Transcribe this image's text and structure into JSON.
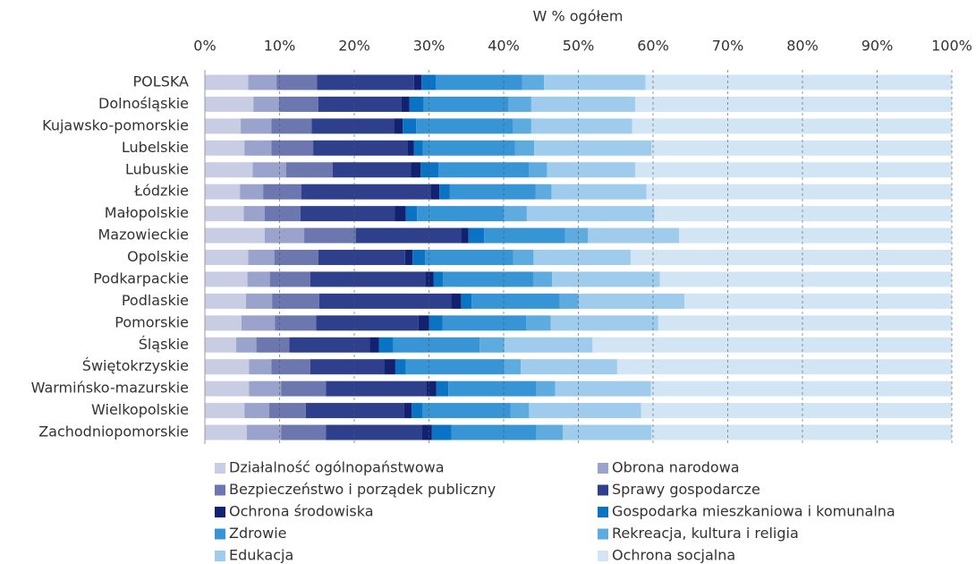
{
  "chart_data": {
    "type": "stacked-bar-horizontal",
    "title": "W % ogółem",
    "categories": [
      "POLSKA",
      "Dolnośląskie",
      "Kujawsko-pomorskie",
      "Lubelskie",
      "Lubuskie",
      "Łódzkie",
      "Małopolskie",
      "Mazowieckie",
      "Opolskie",
      "Podkarpackie",
      "Podlaskie",
      "Pomorskie",
      "Śląskie",
      "Świętokrzyskie",
      "Warmińsko-mazurskie",
      "Wielkopolskie",
      "Zachodniopomorskie"
    ],
    "series": [
      {
        "name": "Działalność ogólnopaństwowa",
        "color": "#c9cde4",
        "values": [
          5.8,
          6.5,
          4.8,
          5.3,
          6.4,
          4.7,
          5.2,
          8.0,
          5.8,
          5.7,
          5.5,
          4.9,
          4.2,
          5.9,
          5.9,
          5.3,
          5.6
        ]
      },
      {
        "name": "Obrona narodowa",
        "color": "#9aa3cc",
        "values": [
          3.8,
          3.4,
          4.1,
          3.6,
          4.5,
          3.1,
          2.8,
          5.3,
          3.5,
          3.0,
          3.5,
          4.5,
          2.7,
          3.0,
          4.3,
          3.3,
          4.6
        ]
      },
      {
        "name": "Bezpieczeństwo i porządek publiczny",
        "color": "#6b77ae",
        "values": [
          5.4,
          5.3,
          5.4,
          5.6,
          6.2,
          5.1,
          4.8,
          6.9,
          5.9,
          5.4,
          6.3,
          5.5,
          4.4,
          5.2,
          6.0,
          4.9,
          6.0
        ]
      },
      {
        "name": "Sprawy gospodarcze",
        "color": "#2e3f8c",
        "values": [
          13.0,
          11.1,
          11.0,
          12.6,
          10.5,
          17.3,
          12.6,
          14.1,
          11.6,
          15.4,
          17.7,
          13.7,
          10.8,
          9.9,
          13.5,
          13.2,
          12.9
        ]
      },
      {
        "name": "Ochrona środowiska",
        "color": "#122170",
        "values": [
          1.0,
          1.1,
          1.2,
          0.9,
          1.3,
          1.2,
          1.5,
          1.0,
          1.0,
          1.1,
          1.3,
          1.4,
          1.2,
          1.5,
          1.3,
          1.0,
          1.3
        ]
      },
      {
        "name": "Gospodarka mieszkaniowa i komunalna",
        "color": "#0b73c3",
        "values": [
          1.9,
          1.9,
          1.8,
          1.2,
          2.4,
          1.4,
          1.5,
          2.1,
          1.7,
          1.3,
          1.4,
          1.8,
          1.9,
          1.4,
          1.6,
          1.4,
          2.6
        ]
      },
      {
        "name": "Zdrowie",
        "color": "#3795d6",
        "values": [
          11.6,
          11.3,
          12.9,
          12.3,
          12.1,
          11.5,
          11.6,
          10.8,
          11.8,
          12.1,
          11.8,
          11.2,
          11.6,
          13.2,
          11.8,
          11.8,
          11.4
        ]
      },
      {
        "name": "Rekreacja, kultura i religia",
        "color": "#5eabdf",
        "values": [
          2.9,
          3.1,
          2.5,
          2.6,
          2.4,
          2.1,
          3.1,
          3.1,
          2.7,
          2.5,
          2.5,
          3.3,
          3.3,
          2.2,
          2.5,
          2.5,
          3.5
        ]
      },
      {
        "name": "Edukacja",
        "color": "#9fcbec",
        "values": [
          13.6,
          13.9,
          13.5,
          15.7,
          11.8,
          12.7,
          17.1,
          12.2,
          13.0,
          14.4,
          14.2,
          14.4,
          11.8,
          12.9,
          12.8,
          15.0,
          11.9
        ]
      },
      {
        "name": "Ochrona socjalna",
        "color": "#d2e5f5",
        "values": [
          41.0,
          42.4,
          42.8,
          40.2,
          42.4,
          40.9,
          39.8,
          36.5,
          43.0,
          39.1,
          35.8,
          39.3,
          48.1,
          44.8,
          40.3,
          41.6,
          40.2
        ]
      }
    ],
    "xlim": [
      0,
      100
    ],
    "xticks": [
      {
        "value": 0,
        "label": "0%"
      },
      {
        "value": 10,
        "label": "10%"
      },
      {
        "value": 20,
        "label": "20%"
      },
      {
        "value": 30,
        "label": "30%"
      },
      {
        "value": 40,
        "label": "40%"
      },
      {
        "value": 50,
        "label": "50%"
      },
      {
        "value": 60,
        "label": "60%"
      },
      {
        "value": 70,
        "label": "70%"
      },
      {
        "value": 80,
        "label": "80%"
      },
      {
        "value": 90,
        "label": "90%"
      },
      {
        "value": 100,
        "label": "100%"
      }
    ],
    "grid": true
  }
}
